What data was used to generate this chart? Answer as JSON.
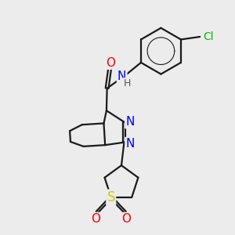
{
  "bg_color": "#ececec",
  "atom_colors": {
    "C": "#1a1a1a",
    "N": "#0000ff",
    "O": "#ff0000",
    "S": "#cccc00",
    "Cl": "#00bb00",
    "H": "#555555"
  },
  "bond_color": "#1a1a1a",
  "bond_width": 1.6,
  "font_size": 10
}
